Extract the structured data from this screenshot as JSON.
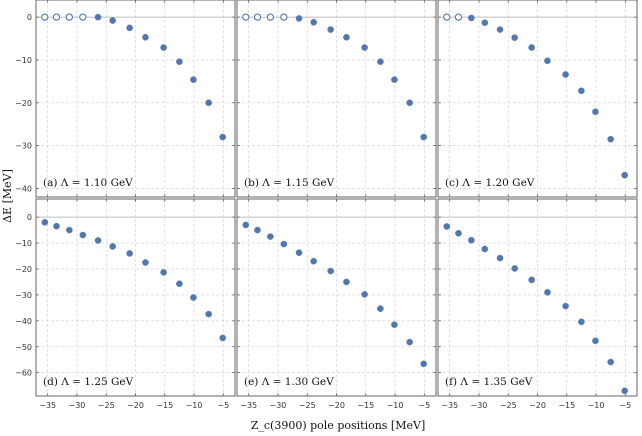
{
  "figure": {
    "ylabel": "ΔE [MeV]",
    "xlabel": "Z_c(3900) pole positions [MeV]"
  },
  "colors": {
    "marker": "#5277b0",
    "frame": "#555555",
    "grid": "#cfcfcf"
  },
  "chart_data": [
    {
      "type": "scatter",
      "label": "(a) Λ = 1.10 GeV",
      "xlim": [
        -37,
        -3
      ],
      "ylim": [
        -42,
        4
      ],
      "xticks": [
        -35,
        -30,
        -25,
        -20,
        -15,
        -10,
        -5
      ],
      "yticks": [
        0,
        -10,
        -20,
        -30,
        -40
      ],
      "x": [
        -35.5,
        -33.5,
        -31.3,
        -29.0,
        -26.4,
        -23.9,
        -21.0,
        -18.3,
        -15.2,
        -12.5,
        -10.1,
        -7.5,
        -5.1
      ],
      "y": [
        0,
        0,
        0,
        0,
        0,
        -0.8,
        -2.5,
        -4.7,
        -7.1,
        -10.4,
        -14.6,
        -20.0,
        -28.0
      ],
      "open": [
        true,
        true,
        true,
        true,
        false,
        false,
        false,
        false,
        false,
        false,
        false,
        false,
        false
      ]
    },
    {
      "type": "scatter",
      "label": "(b) Λ = 1.15 GeV",
      "xlim": [
        -37,
        -3
      ],
      "ylim": [
        -42,
        4
      ],
      "xticks": [
        -35,
        -30,
        -25,
        -20,
        -15,
        -10,
        -5
      ],
      "yticks": [
        0,
        -10,
        -20,
        -30,
        -40
      ],
      "x": [
        -35.5,
        -33.5,
        -31.3,
        -29.0,
        -26.4,
        -23.9,
        -21.0,
        -18.3,
        -15.2,
        -12.5,
        -10.1,
        -7.5,
        -5.1
      ],
      "y": [
        0,
        0,
        0,
        0,
        -0.3,
        -1.2,
        -2.9,
        -4.7,
        -7.1,
        -10.4,
        -14.6,
        -20.0,
        -28.0
      ],
      "open": [
        true,
        true,
        true,
        true,
        false,
        false,
        false,
        false,
        false,
        false,
        false,
        false,
        false
      ]
    },
    {
      "type": "scatter",
      "label": "(c) Λ = 1.20 GeV",
      "xlim": [
        -37,
        -3
      ],
      "ylim": [
        -42,
        4
      ],
      "xticks": [
        -35,
        -30,
        -25,
        -20,
        -15,
        -10,
        -5
      ],
      "yticks": [
        0,
        -10,
        -20,
        -30,
        -40
      ],
      "x": [
        -35.5,
        -33.5,
        -31.3,
        -29.0,
        -26.4,
        -23.9,
        -21.0,
        -18.3,
        -15.2,
        -12.5,
        -10.1,
        -7.5,
        -5.1
      ],
      "y": [
        0,
        0,
        -0.2,
        -1.3,
        -2.9,
        -4.8,
        -7.1,
        -10.2,
        -13.4,
        -17.2,
        -22.1,
        -28.5,
        -36.9
      ],
      "open": [
        true,
        true,
        false,
        false,
        false,
        false,
        false,
        false,
        false,
        false,
        false,
        false,
        false
      ]
    },
    {
      "type": "scatter",
      "label": "(d) Λ = 1.25 GeV",
      "xlim": [
        -37,
        -3
      ],
      "ylim": [
        -69,
        7
      ],
      "xticks": [
        -35,
        -30,
        -25,
        -20,
        -15,
        -10,
        -5
      ],
      "yticks": [
        0,
        -10,
        -20,
        -30,
        -40,
        -50,
        -60
      ],
      "x": [
        -35.5,
        -33.5,
        -31.3,
        -29.0,
        -26.4,
        -23.9,
        -21.0,
        -18.3,
        -15.2,
        -12.5,
        -10.1,
        -7.5,
        -5.1
      ],
      "y": [
        -2.0,
        -3.5,
        -5.0,
        -6.9,
        -9.0,
        -11.3,
        -14.0,
        -17.5,
        -21.3,
        -25.7,
        -31.0,
        -37.4,
        -46.6
      ],
      "open": [
        false,
        false,
        false,
        false,
        false,
        false,
        false,
        false,
        false,
        false,
        false,
        false,
        false
      ]
    },
    {
      "type": "scatter",
      "label": "(e) Λ = 1.30 GeV",
      "xlim": [
        -37,
        -3
      ],
      "ylim": [
        -69,
        7
      ],
      "xticks": [
        -35,
        -30,
        -25,
        -20,
        -15,
        -10,
        -5
      ],
      "yticks": [
        0,
        -10,
        -20,
        -30,
        -40,
        -50,
        -60
      ],
      "x": [
        -35.5,
        -33.5,
        -31.3,
        -29.0,
        -26.4,
        -23.9,
        -21.0,
        -18.3,
        -15.2,
        -12.5,
        -10.1,
        -7.5,
        -5.1
      ],
      "y": [
        -3.0,
        -5.0,
        -7.5,
        -10.4,
        -13.7,
        -17.0,
        -20.8,
        -25.0,
        -29.8,
        -35.3,
        -41.5,
        -48.2,
        -56.6
      ],
      "open": [
        false,
        false,
        false,
        false,
        false,
        false,
        false,
        false,
        false,
        false,
        false,
        false,
        false
      ]
    },
    {
      "type": "scatter",
      "label": "(f) Λ = 1.35 GeV",
      "xlim": [
        -37,
        -3
      ],
      "ylim": [
        -69,
        7
      ],
      "xticks": [
        -35,
        -30,
        -25,
        -20,
        -15,
        -10,
        -5
      ],
      "yticks": [
        0,
        -10,
        -20,
        -30,
        -40,
        -50,
        -60
      ],
      "x": [
        -35.5,
        -33.5,
        -31.3,
        -29.0,
        -26.4,
        -23.9,
        -21.0,
        -18.3,
        -15.2,
        -12.5,
        -10.1,
        -7.5,
        -5.1
      ],
      "y": [
        -3.6,
        -6.2,
        -8.9,
        -12.3,
        -15.8,
        -19.8,
        -24.2,
        -29.0,
        -34.3,
        -40.4,
        -47.7,
        -55.9,
        -67.0
      ],
      "open": [
        false,
        false,
        false,
        false,
        false,
        false,
        false,
        false,
        false,
        false,
        false,
        false,
        false
      ]
    }
  ]
}
